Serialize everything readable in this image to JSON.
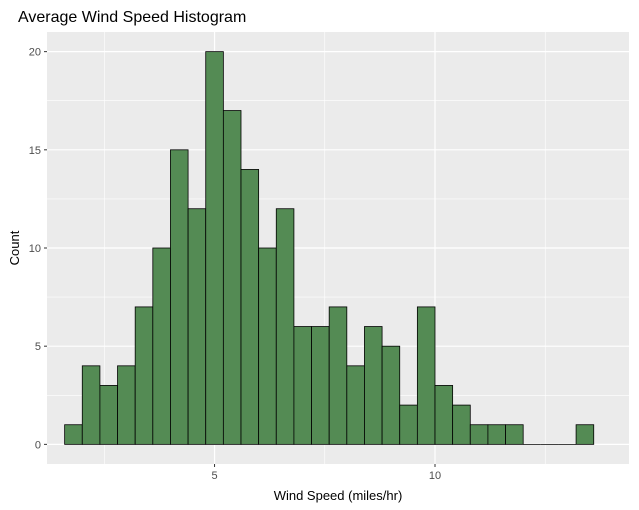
{
  "chart_data": {
    "type": "bar",
    "title": "Average Wind Speed Histogram",
    "xlabel": "Wind Speed (miles/hr)",
    "ylabel": "Count",
    "xlim": [
      1.2,
      14.4
    ],
    "ylim": [
      -1,
      21
    ],
    "bin_width": 0.4,
    "bin_start": 1.6,
    "counts": [
      1,
      4,
      3,
      4,
      7,
      10,
      15,
      12,
      20,
      17,
      14,
      10,
      12,
      6,
      6,
      7,
      4,
      6,
      5,
      2,
      7,
      3,
      2,
      1,
      1,
      1,
      0,
      0,
      0,
      1
    ],
    "x_ticks": [
      5,
      10
    ],
    "x_tick_labels": [
      "5",
      "10"
    ],
    "y_ticks": [
      0,
      5,
      10,
      15,
      20
    ],
    "y_tick_labels": [
      "0",
      "5",
      "10",
      "15",
      "20"
    ],
    "grid": true,
    "legend": "none",
    "colors": {
      "bar_fill": "#548b54",
      "bar_stroke": "#000000",
      "panel_bg": "#ebebeb",
      "grid": "#ffffff"
    }
  }
}
